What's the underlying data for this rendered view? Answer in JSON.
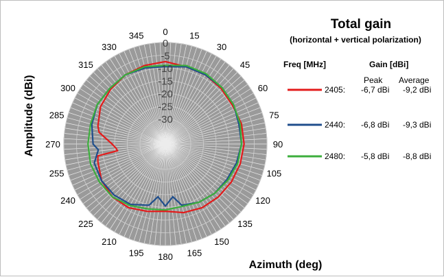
{
  "colors": {
    "polar_background": "#9a9a9a",
    "radial_line": "#ececec",
    "ring_line": "#d0d0d0",
    "s2405": "#e31b1b",
    "s2440": "#1f4e8c",
    "s2480": "#3cae3c"
  },
  "chart_data": {
    "type": "polar-line",
    "title": "Total gain",
    "subtitle": "(horizontal + vertical polarization)",
    "ylabel": "Amplitude (dBi)",
    "xlabel": "Azimuth (deg)",
    "angle_labels": [
      "0",
      "15",
      "30",
      "45",
      "60",
      "75",
      "90",
      "105",
      "120",
      "135",
      "150",
      "165",
      "180",
      "195",
      "210",
      "225",
      "240",
      "255",
      "270",
      "285",
      "300",
      "315",
      "330",
      "345"
    ],
    "radial_labels": [
      "0",
      "-5",
      "-10",
      "-15",
      "-20",
      "-25",
      "-30"
    ],
    "rlim": [
      -40,
      0
    ],
    "legend": {
      "freq_header": "Freq [MHz]",
      "gain_header": "Gain [dBi]",
      "peak_header": "Peak",
      "avg_header": "Average"
    },
    "series": [
      {
        "name": "2405",
        "label": "2405:",
        "peak": "-6,7 dBi",
        "average": "-9,2 dBi",
        "color": "#e31b1b",
        "angles": [
          0,
          15,
          30,
          45,
          60,
          75,
          90,
          105,
          120,
          135,
          150,
          165,
          180,
          195,
          210,
          225,
          240,
          255,
          260,
          262,
          265,
          270,
          280,
          285,
          300,
          315,
          330,
          345
        ],
        "values": [
          -7.5,
          -8.5,
          -8.5,
          -9.0,
          -9.5,
          -9.0,
          -9.0,
          -9.5,
          -10.0,
          -10.5,
          -11.0,
          -12.0,
          -13.5,
          -12.5,
          -11.0,
          -10.5,
          -11.0,
          -12.5,
          -13.0,
          -21.0,
          -20.5,
          -19.0,
          -13.5,
          -12.5,
          -10.5,
          -9.5,
          -8.5,
          -8.0
        ]
      },
      {
        "name": "2440",
        "label": "2440:",
        "peak": "-6,8 dBi",
        "average": "-9,3 dBi",
        "color": "#1f4e8c",
        "angles": [
          0,
          15,
          30,
          45,
          60,
          75,
          90,
          105,
          120,
          135,
          150,
          165,
          172,
          180,
          188,
          195,
          210,
          225,
          240,
          255,
          265,
          270,
          285,
          300,
          315,
          330,
          345
        ],
        "values": [
          -9.5,
          -8.5,
          -8.5,
          -8.5,
          -9.0,
          -10.0,
          -10.0,
          -11.0,
          -12.0,
          -12.5,
          -13.5,
          -15.0,
          -19.0,
          -15.5,
          -19.0,
          -15.0,
          -12.5,
          -11.5,
          -11.0,
          -11.0,
          -13.5,
          -11.5,
          -10.0,
          -9.0,
          -9.0,
          -8.5,
          -9.0
        ]
      },
      {
        "name": "2480",
        "label": "2480:",
        "peak": "-5,8 dBi",
        "average": "-8,8 dBi",
        "color": "#3cae3c",
        "angles": [
          0,
          15,
          30,
          45,
          60,
          75,
          90,
          105,
          120,
          135,
          150,
          165,
          180,
          195,
          210,
          225,
          240,
          255,
          270,
          285,
          300,
          315,
          330,
          345
        ],
        "values": [
          -9.0,
          -8.0,
          -8.0,
          -8.5,
          -9.0,
          -9.5,
          -10.0,
          -10.5,
          -11.5,
          -12.5,
          -13.5,
          -14.5,
          -14.0,
          -13.5,
          -12.0,
          -10.5,
          -10.0,
          -9.5,
          -9.5,
          -9.5,
          -9.0,
          -9.0,
          -8.5,
          -8.5
        ]
      }
    ]
  }
}
